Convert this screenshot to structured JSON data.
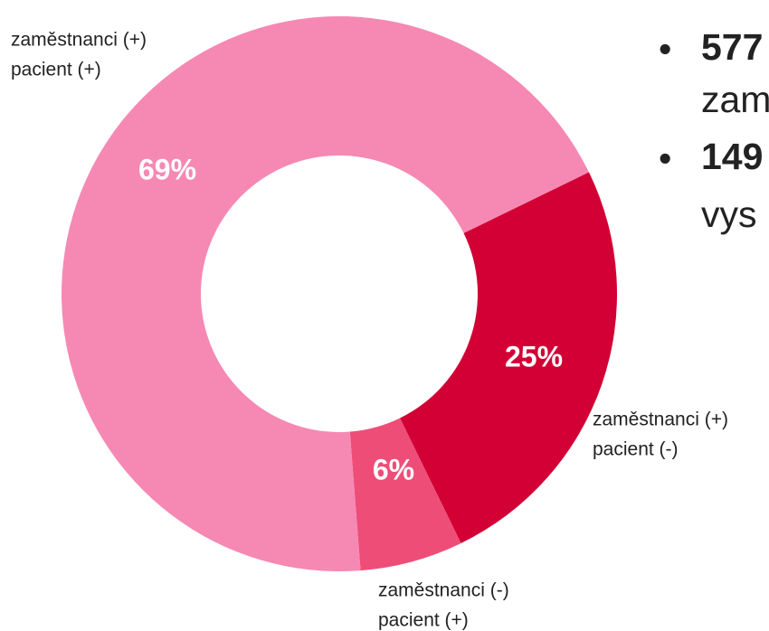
{
  "chart_data": {
    "type": "donut",
    "categories": [
      [
        "zaměstnanci (+)",
        "pacient (-)"
      ],
      [
        "zaměstnanci (-)",
        "pacient (+)"
      ],
      [
        "zaměstnanci (+)",
        "pacient (+)"
      ]
    ],
    "values": [
      25,
      6,
      69
    ],
    "value_labels": [
      "25%",
      "6%",
      "69%"
    ],
    "colors": [
      "#d20034",
      "#ee4d78",
      "#f589b3"
    ],
    "annotations": [
      {
        "bold": "577",
        "text": "zam"
      },
      {
        "bold": "149",
        "text": "vys"
      }
    ]
  }
}
